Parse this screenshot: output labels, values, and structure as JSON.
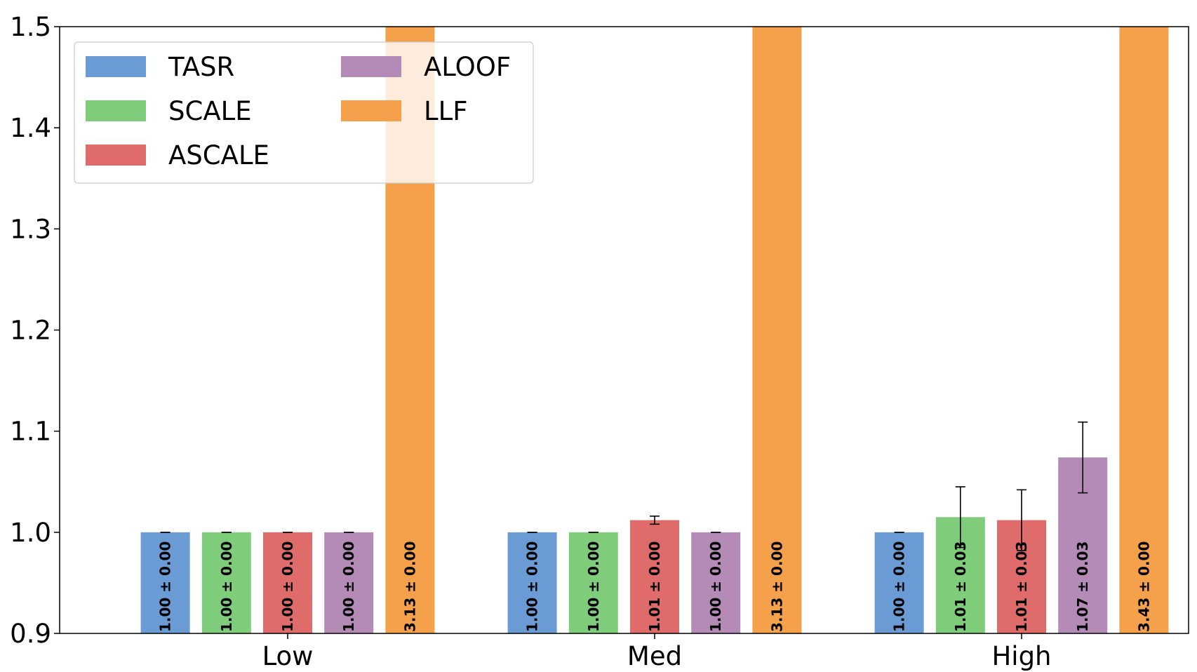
{
  "chart_data": {
    "type": "bar",
    "title": "",
    "xlabel": "",
    "ylabel": "",
    "categories": [
      "Low",
      "Med",
      "High"
    ],
    "ylim": [
      0.9,
      1.5
    ],
    "yticks": [
      "0.9",
      "1.0",
      "1.1",
      "1.2",
      "1.3",
      "1.4",
      "1.5"
    ],
    "grid": false,
    "legend_position": "top-left",
    "legend_columns": 2,
    "series": [
      {
        "name": "TASR",
        "color": "#6a9bd4",
        "values": [
          1.0,
          1.0,
          1.0
        ],
        "errors": [
          0.0,
          0.0,
          0.0
        ],
        "labels": [
          "1.00 ± 0.00",
          "1.00 ± 0.00",
          "1.00 ± 0.00"
        ]
      },
      {
        "name": "SCALE",
        "color": "#7fcd7b",
        "values": [
          1.0,
          1.0,
          1.015
        ],
        "errors": [
          0.0,
          0.0,
          0.03
        ],
        "labels": [
          "1.00 ± 0.00",
          "1.00 ± 0.00",
          "1.01 ± 0.03"
        ]
      },
      {
        "name": "ASCALE",
        "color": "#e06b6b",
        "values": [
          1.0,
          1.012,
          1.012
        ],
        "errors": [
          0.0,
          0.004,
          0.03
        ],
        "labels": [
          "1.00 ± 0.00",
          "1.01 ± 0.00",
          "1.01 ± 0.03"
        ]
      },
      {
        "name": "ALOOF",
        "color": "#b48bb7",
        "values": [
          1.0,
          1.0,
          1.074
        ],
        "errors": [
          0.0,
          0.0,
          0.035
        ],
        "labels": [
          "1.00 ± 0.00",
          "1.00 ± 0.00",
          "1.07 ± 0.03"
        ]
      },
      {
        "name": "LLF",
        "color": "#f5a04a",
        "values": [
          3.13,
          3.13,
          3.43
        ],
        "errors": [
          0.0,
          0.0,
          0.0
        ],
        "labels": [
          "3.13 ± 0.00",
          "3.13 ± 0.00",
          "3.43 ± 0.00"
        ]
      }
    ]
  }
}
